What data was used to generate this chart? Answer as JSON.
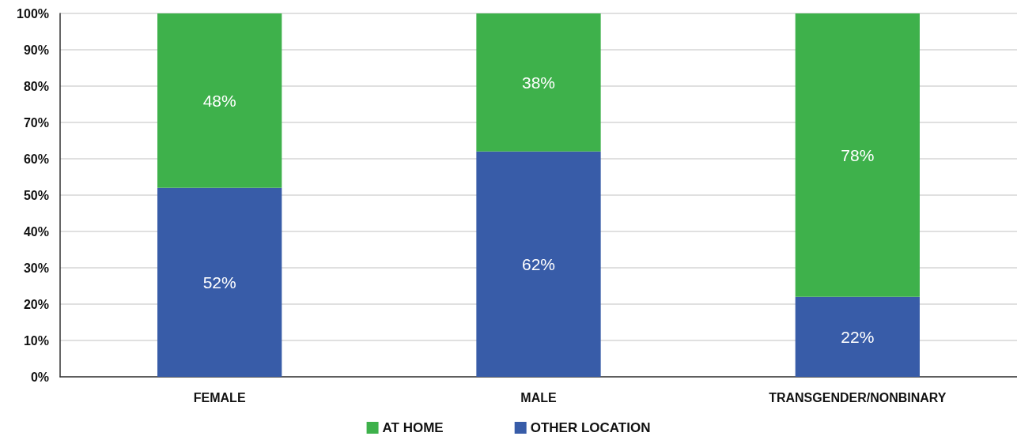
{
  "chart_data": {
    "type": "bar",
    "stacked": true,
    "categories": [
      "FEMALE",
      "MALE",
      "TRANSGENDER/NONBINARY"
    ],
    "series": [
      {
        "name": "OTHER LOCATION",
        "color": "#385ca8",
        "values": [
          52,
          62,
          22
        ],
        "value_labels": [
          "52%",
          "62%",
          "22%"
        ]
      },
      {
        "name": "AT HOME",
        "color": "#3eb14b",
        "values": [
          48,
          38,
          78
        ],
        "value_labels": [
          "48%",
          "38%",
          "78%"
        ]
      }
    ],
    "ylim": [
      0,
      100
    ],
    "yticks": [
      {
        "value": 0,
        "label": "0%"
      },
      {
        "value": 10,
        "label": "10%"
      },
      {
        "value": 20,
        "label": "20%"
      },
      {
        "value": 30,
        "label": "30%"
      },
      {
        "value": 40,
        "label": "40%"
      },
      {
        "value": 50,
        "label": "50%"
      },
      {
        "value": 60,
        "label": "60%"
      },
      {
        "value": 70,
        "label": "70%"
      },
      {
        "value": 80,
        "label": "80%"
      },
      {
        "value": 90,
        "label": "90%"
      },
      {
        "value": 100,
        "label": "100%"
      }
    ],
    "grid": "y",
    "legend": "bottom"
  }
}
